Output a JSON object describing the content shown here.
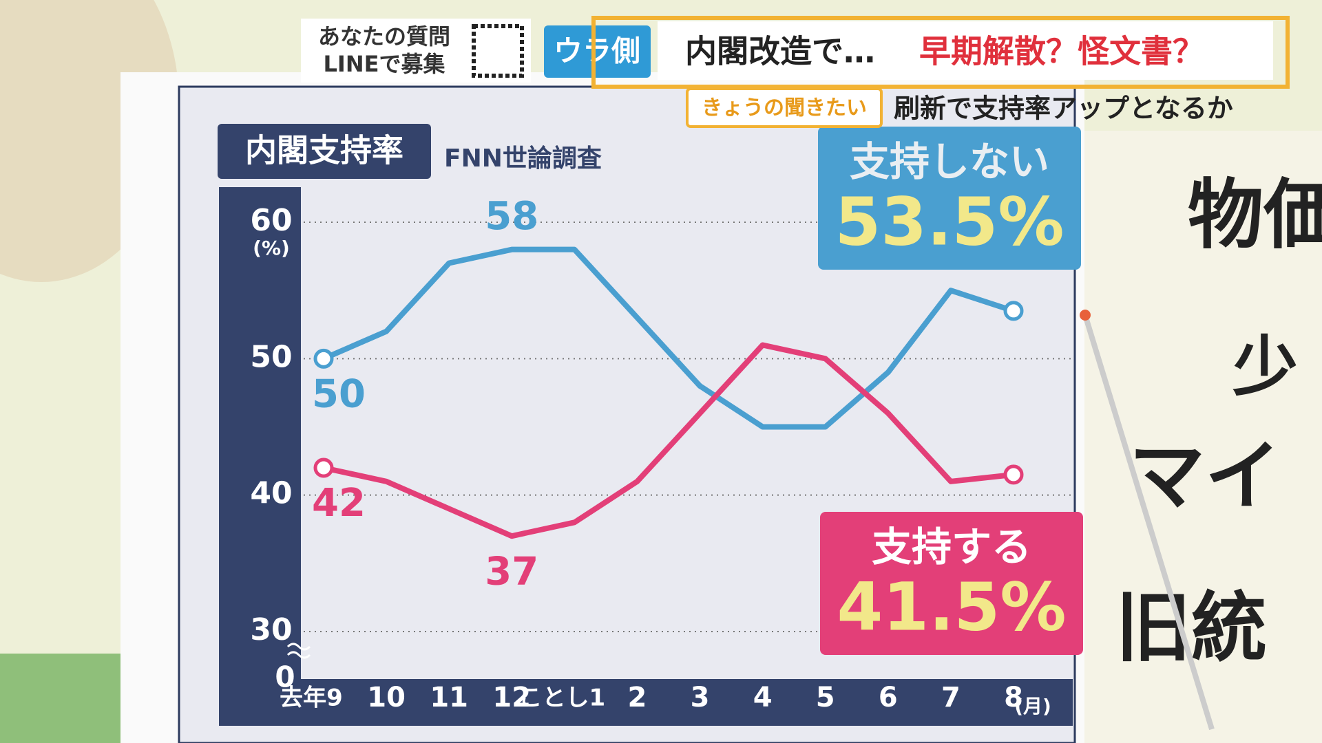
{
  "header": {
    "question_line1": "あなたの質問",
    "question_line2": "LINEで募集",
    "corner": "ウラ側",
    "headline": "内閣改造で…",
    "headline_accent": "早期解散？怪文書？",
    "tag": "きょうの聞きたい",
    "subheadline": "刷新で支持率アップとなるか"
  },
  "background_board": [
    "物価",
    "少",
    "マイ",
    "旧統"
  ],
  "chart_data": {
    "type": "line",
    "title": "内閣支持率",
    "subtitle": "FNN世論調査",
    "y_unit": "(%)",
    "x_unit": "(月)",
    "axis_break_label": 0,
    "categories": [
      "去年9",
      "10",
      "11",
      "12",
      "ことし1",
      "2",
      "3",
      "4",
      "5",
      "6",
      "7",
      "8"
    ],
    "series": [
      {
        "name": "支持しない",
        "color": "#4a9fd0",
        "values": [
          50,
          52,
          57,
          58,
          58,
          53,
          48,
          45,
          45,
          49,
          55,
          53.5
        ],
        "value_labels": [
          "50",
          null,
          null,
          "58",
          null,
          null,
          null,
          null,
          null,
          null,
          null,
          "53.5%"
        ]
      },
      {
        "name": "支持する",
        "color": "#e33f78",
        "values": [
          42,
          41,
          39,
          37,
          38,
          41,
          46,
          51,
          50,
          46,
          41,
          41.5
        ],
        "value_labels": [
          "42",
          null,
          null,
          "37",
          null,
          null,
          null,
          null,
          null,
          null,
          null,
          "41.5%"
        ]
      }
    ],
    "ylim": [
      30,
      60
    ],
    "yticks": [
      30,
      40,
      50,
      60
    ],
    "grid": true
  }
}
